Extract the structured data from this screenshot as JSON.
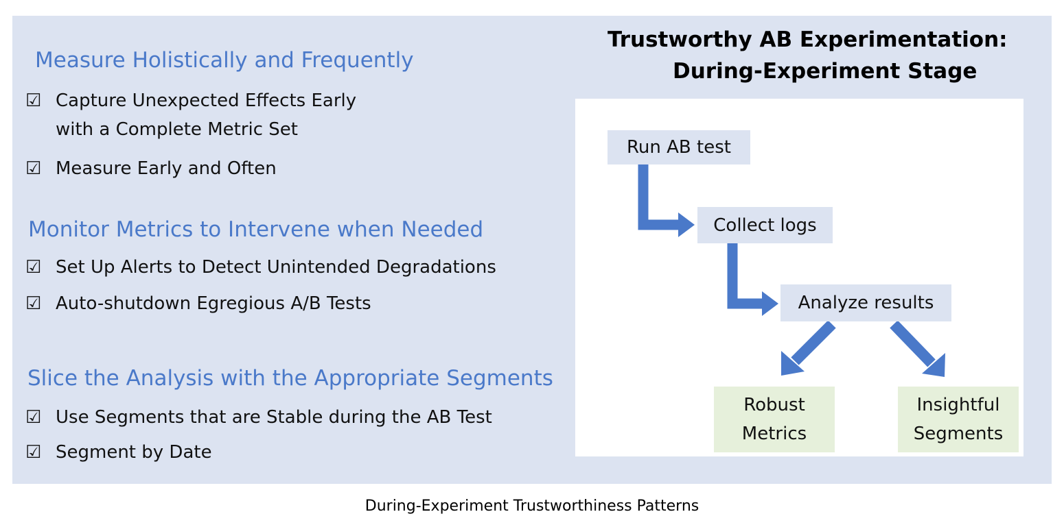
{
  "sections": [
    {
      "heading": "Measure Holistically and Frequently",
      "items": [
        {
          "line1": "Capture Unexpected Effects Early",
          "line2": "with a Complete Metric Set"
        },
        {
          "line1": "Measure Early and Often"
        }
      ]
    },
    {
      "heading": "Monitor Metrics to Intervene when Needed",
      "items": [
        {
          "line1": "Set Up Alerts to Detect Unintended Degradations"
        },
        {
          "line1": "Auto-shutdown Egregious A/B Tests"
        }
      ]
    },
    {
      "heading": "Slice the Analysis with the Appropriate Segments",
      "items": [
        {
          "line1": "Use Segments that are Stable during the AB Test"
        },
        {
          "line1": "Segment by Date"
        }
      ]
    }
  ],
  "checkbox_glyph": "☑",
  "title": {
    "line1": "Trustworthy AB Experimentation:",
    "line2": "During-Experiment Stage"
  },
  "flow": {
    "steps": [
      "Run AB test",
      "Collect logs",
      "Analyze results"
    ],
    "outcomes": [
      {
        "line1": "Robust",
        "line2": "Metrics"
      },
      {
        "line1": "Insightful",
        "line2": "Segments"
      }
    ]
  },
  "caption": "During-Experiment Trustworthiness Patterns",
  "colors": {
    "panel": "#dce3f1",
    "heading": "#4a79c9",
    "arrow": "#4a79c9",
    "outcome_box": "#e6f0db"
  }
}
